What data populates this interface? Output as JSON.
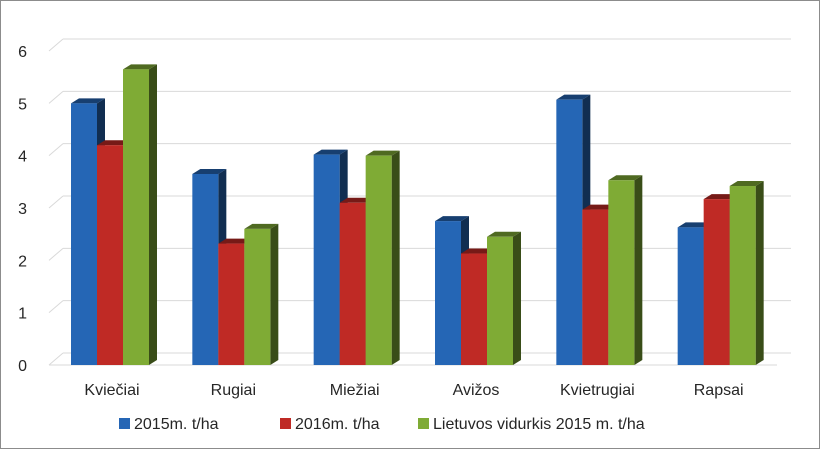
{
  "chart_data": {
    "type": "bar",
    "categories": [
      "Kviečiai",
      "Rugiai",
      "Miežiai",
      "Avižos",
      "Kvietrugiai",
      "Rapsai"
    ],
    "series": [
      {
        "name": "2015m. t/ha",
        "values": [
          5.0,
          3.65,
          4.02,
          2.75,
          5.07,
          2.63
        ],
        "color": "#2566b5"
      },
      {
        "name": "2016m. t/ha",
        "values": [
          4.2,
          2.32,
          3.1,
          2.13,
          2.97,
          3.17
        ],
        "color": "#bf2a25"
      },
      {
        "name": "Lietuvos vidurkis 2015 m. t/ha",
        "values": [
          5.65,
          2.6,
          4.0,
          2.45,
          3.53,
          3.42
        ],
        "color": "#7fab35"
      }
    ],
    "y_ticks": [
      "0",
      "1",
      "2",
      "3",
      "4",
      "5",
      "6"
    ],
    "ylim": [
      0,
      6
    ],
    "grid": true,
    "legend_position": "bottom",
    "style": "3d-clustered-column"
  }
}
